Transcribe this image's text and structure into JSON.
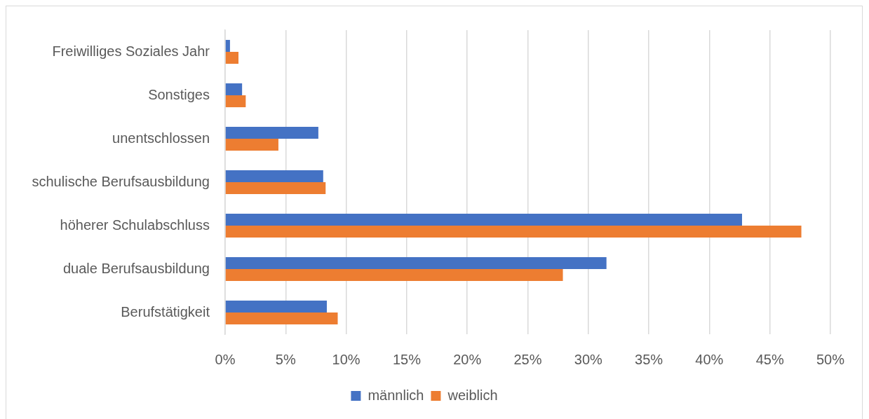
{
  "chart_data": {
    "type": "bar",
    "orientation": "horizontal",
    "categories": [
      "Freiwilliges Soziales Jahr",
      "Sonstiges",
      "unentschlossen",
      "schulische Berufsausbildung",
      "höherer Schulabschluss",
      "duale Berufsausbildung",
      "Berufstätigkeit"
    ],
    "series": [
      {
        "name": "männlich",
        "color": "#4472c4",
        "values": [
          0.4,
          1.4,
          7.7,
          8.1,
          42.7,
          31.5,
          8.4
        ]
      },
      {
        "name": "weiblich",
        "color": "#ed7d31",
        "values": [
          1.1,
          1.7,
          4.4,
          8.3,
          47.6,
          27.9,
          9.3
        ]
      }
    ],
    "xlim": [
      0,
      50
    ],
    "xticks": [
      {
        "value": 0,
        "label": "0%"
      },
      {
        "value": 5,
        "label": "5%"
      },
      {
        "value": 10,
        "label": "10%"
      },
      {
        "value": 15,
        "label": "15%"
      },
      {
        "value": 20,
        "label": "20%"
      },
      {
        "value": 25,
        "label": "25%"
      },
      {
        "value": 30,
        "label": "30%"
      },
      {
        "value": 35,
        "label": "35%"
      },
      {
        "value": 40,
        "label": "40%"
      },
      {
        "value": 45,
        "label": "45%"
      },
      {
        "value": 50,
        "label": "50%"
      }
    ],
    "grid": "x",
    "legend": "bottom"
  }
}
